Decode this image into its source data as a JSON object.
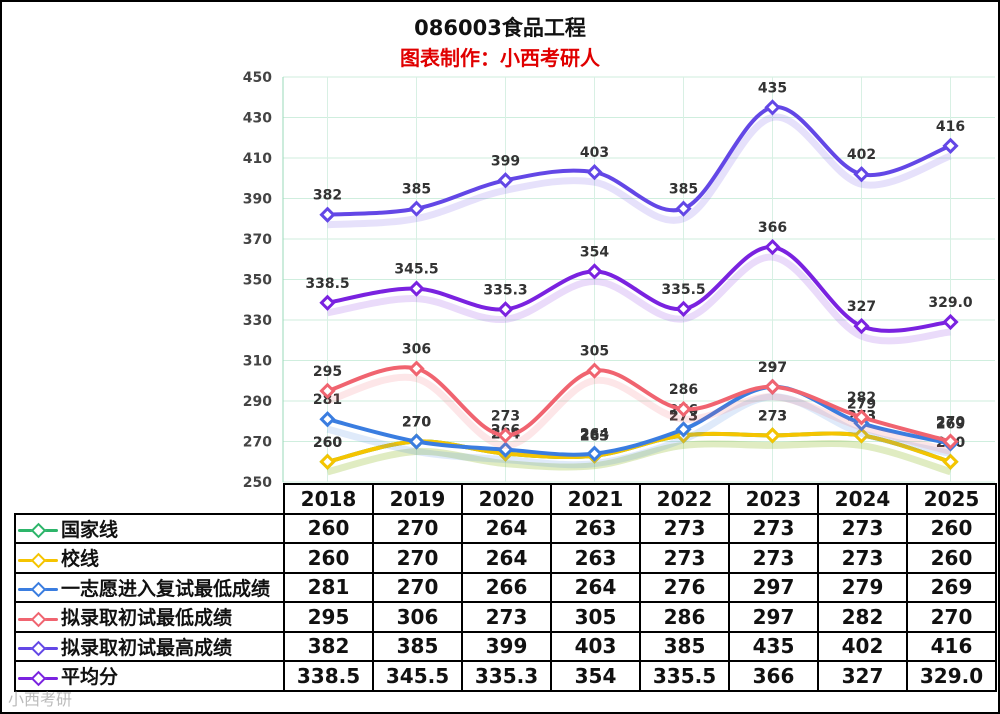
{
  "title": "086003食品工程",
  "subtitle": "图表制作：小西考研人",
  "watermark": "小西考研",
  "chart_data": {
    "type": "line",
    "categories": [
      "2018",
      "2019",
      "2020",
      "2021",
      "2022",
      "2023",
      "2024",
      "2025"
    ],
    "ylim": [
      250,
      450
    ],
    "yticks": [
      250,
      270,
      290,
      310,
      330,
      350,
      370,
      390,
      410,
      430,
      450
    ],
    "grid": true,
    "legend": "table-left",
    "series": [
      {
        "name": "国家线",
        "color": "#2db56a",
        "values": [
          260,
          270,
          264,
          263,
          273,
          273,
          273,
          260
        ],
        "labels": [
          "260",
          "270",
          "264",
          "263",
          "273",
          "273",
          "273",
          "260"
        ]
      },
      {
        "name": "校线",
        "color": "#f5c400",
        "values": [
          260,
          270,
          264,
          263,
          273,
          273,
          273,
          260
        ],
        "labels": [
          "260",
          "270",
          "264",
          "263",
          "273",
          "273",
          "273",
          "260"
        ]
      },
      {
        "name": "一志愿进入复试最低成绩",
        "color": "#3a7de0",
        "values": [
          281,
          270,
          266,
          264,
          276,
          297,
          279,
          269
        ],
        "labels": [
          "281",
          "270",
          "266",
          "264",
          "276",
          "297",
          "279",
          "269"
        ]
      },
      {
        "name": "拟录取初试最低成绩",
        "color": "#f06470",
        "values": [
          295,
          306,
          273,
          305,
          286,
          297,
          282,
          270
        ],
        "labels": [
          "295",
          "306",
          "273",
          "305",
          "286",
          "297",
          "282",
          "270"
        ]
      },
      {
        "name": "拟录取初试最高成绩",
        "color": "#6347e6",
        "values": [
          382,
          385,
          399,
          403,
          385,
          435,
          402,
          416
        ],
        "labels": [
          "382",
          "385",
          "399",
          "403",
          "385",
          "435",
          "402",
          "416"
        ]
      },
      {
        "name": "平均分",
        "color": "#7a22e0",
        "values": [
          338.5,
          345.5,
          335.3,
          354,
          335.5,
          366,
          327,
          329.0
        ],
        "labels": [
          "338.5",
          "345.5",
          "335.3",
          "354",
          "335.5",
          "366",
          "327",
          "329.0"
        ]
      }
    ]
  }
}
